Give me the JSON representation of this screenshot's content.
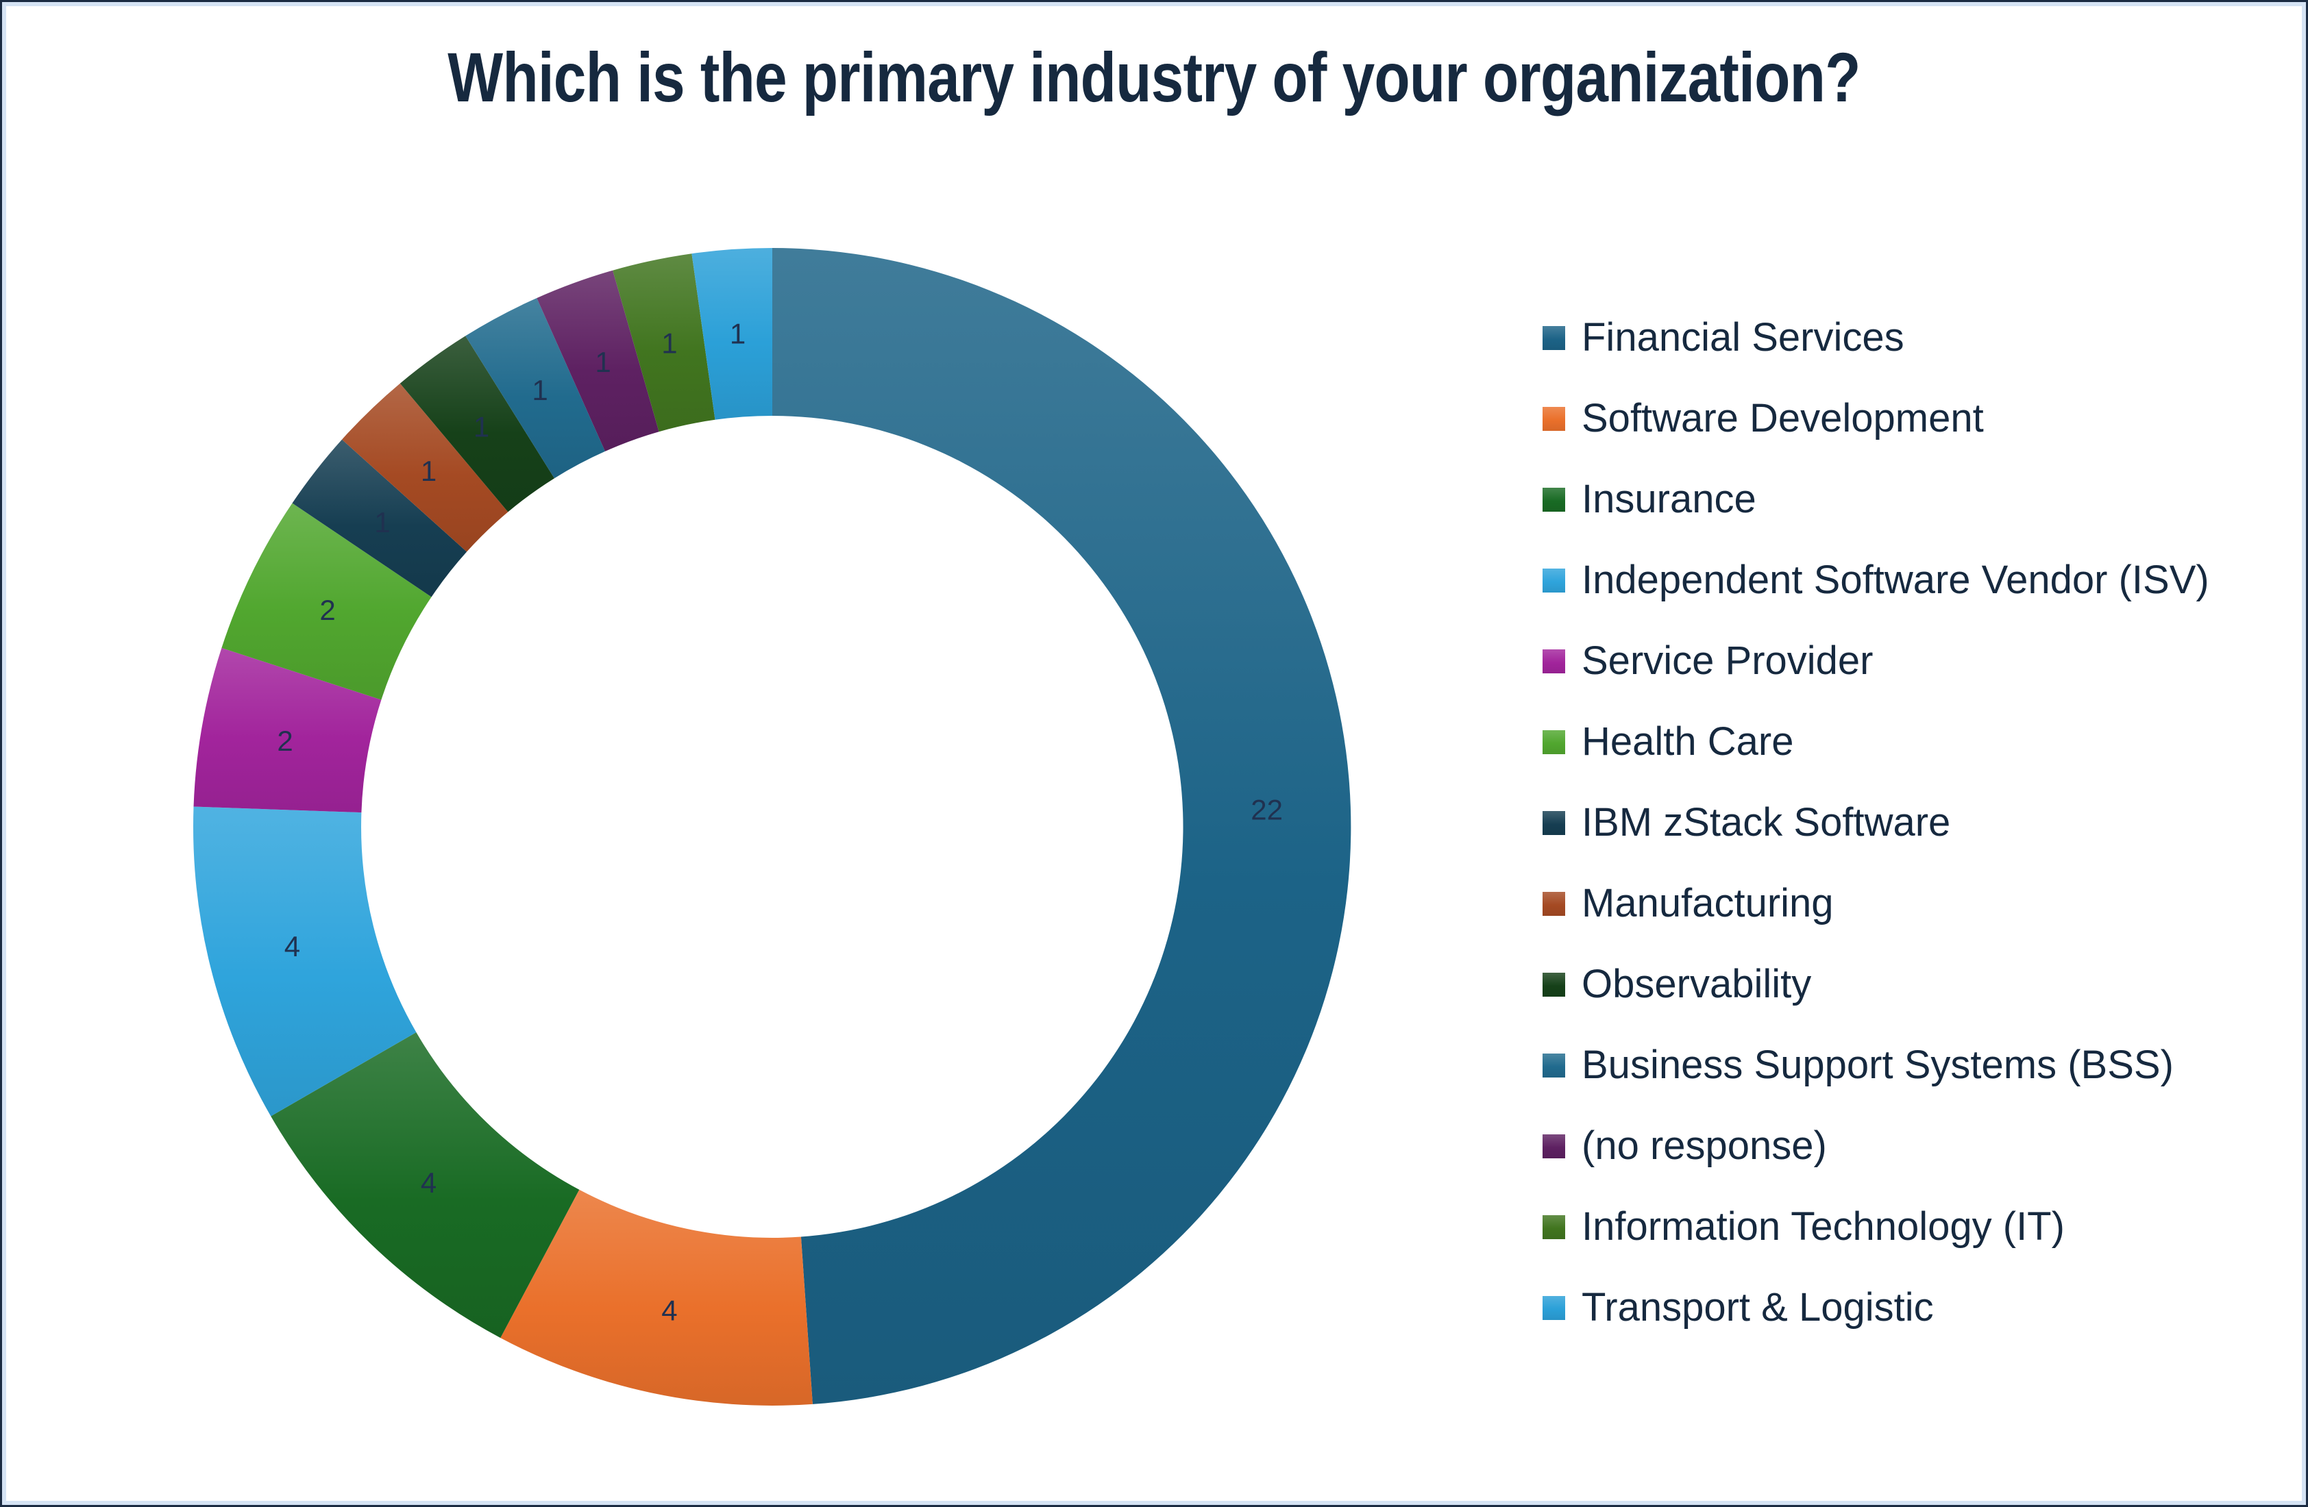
{
  "title": "Which is the primary industry of your organization?",
  "chart_data": {
    "type": "pie",
    "subtype": "donut",
    "title": "Which is the primary industry of your organization?",
    "categories": [
      "Financial Services",
      "Software Development",
      "Insurance",
      "Independent Software Vendor (ISV)",
      "Service Provider",
      "Health Care",
      "IBM zStack Software",
      "Manufacturing",
      "Observability",
      "Business Support Systems (BSS)",
      "(no response)",
      "Information Technology (IT)",
      "Transport & Logistic"
    ],
    "values": [
      22,
      4,
      4,
      4,
      2,
      2,
      1,
      1,
      1,
      1,
      1,
      1,
      1
    ],
    "total": 45,
    "colors": [
      "#1C6387",
      "#EA702B",
      "#196B24",
      "#2FA4DC",
      "#A2249C",
      "#51A72F",
      "#163E52",
      "#A54A23",
      "#164119",
      "#216B8E",
      "#5E2162",
      "#41751F",
      "#2BA0D8"
    ],
    "data_labels": "values",
    "legend_position": "right",
    "start_angle_deg": 0,
    "direction": "clockwise",
    "donut_hole_ratio": 0.71
  },
  "styles": {
    "title_color": "#16293F",
    "value_label_color": "#203150",
    "legend_text_color": "#16293F",
    "frame_border": "#1B2B42",
    "frame_inner_border": "#D5E3F4",
    "background": "#FFFFFF"
  }
}
